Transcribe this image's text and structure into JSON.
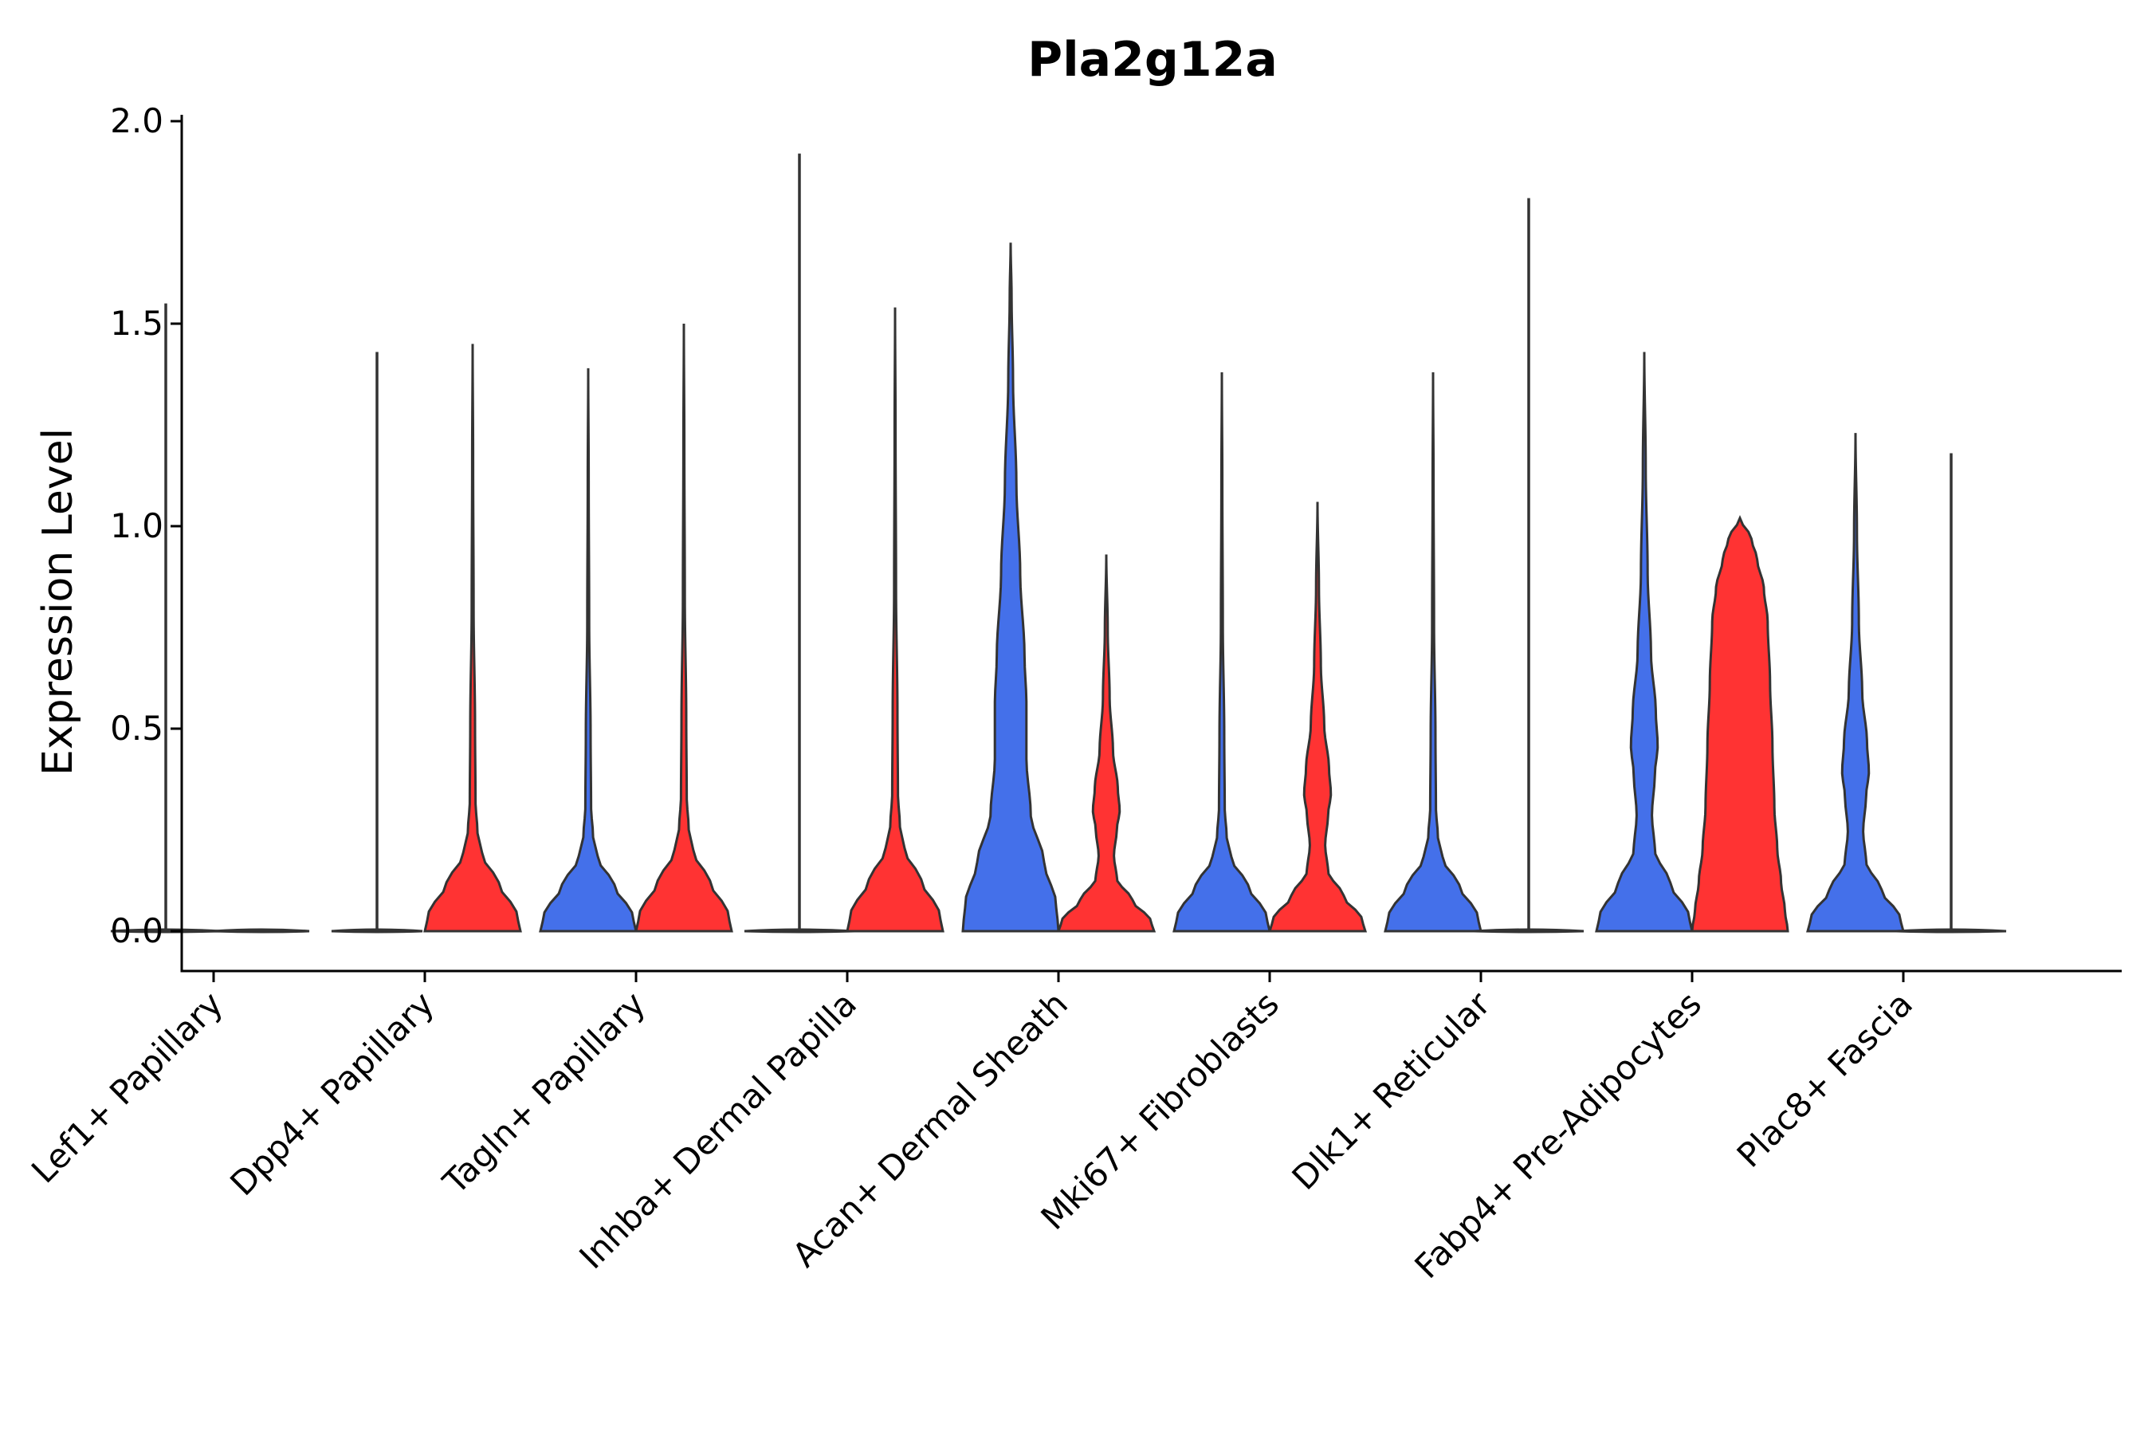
{
  "chart_data": {
    "type": "violin",
    "title": "Pla2g12a",
    "xlabel": "",
    "ylabel": "Expression Level",
    "ylim": [
      -0.1,
      2.0
    ],
    "yticks": [
      "0.0",
      "0.5",
      "1.0",
      "1.5",
      "2.0"
    ],
    "categories": [
      "Lef1+ Papillary",
      "Dpp4+ Papillary",
      "Tagln+ Papillary",
      "Inhba+ Dermal Papilla",
      "Acan+ Dermal Sheath",
      "Mki67+ Fibroblasts",
      "Dlk1+ Reticular",
      "Fabp4+ Pre-Adipocytes",
      "Plac8+ Fascia"
    ],
    "series": [
      {
        "name": "blue",
        "color": "#4470EA",
        "max": [
          1.55,
          1.43,
          1.39,
          1.92,
          1.7,
          1.38,
          1.38,
          1.43,
          1.23
        ]
      },
      {
        "name": "red",
        "color": "#FF3333",
        "max": [
          0.0,
          1.45,
          1.5,
          1.54,
          0.93,
          1.06,
          1.81,
          1.02,
          1.18
        ]
      }
    ]
  }
}
